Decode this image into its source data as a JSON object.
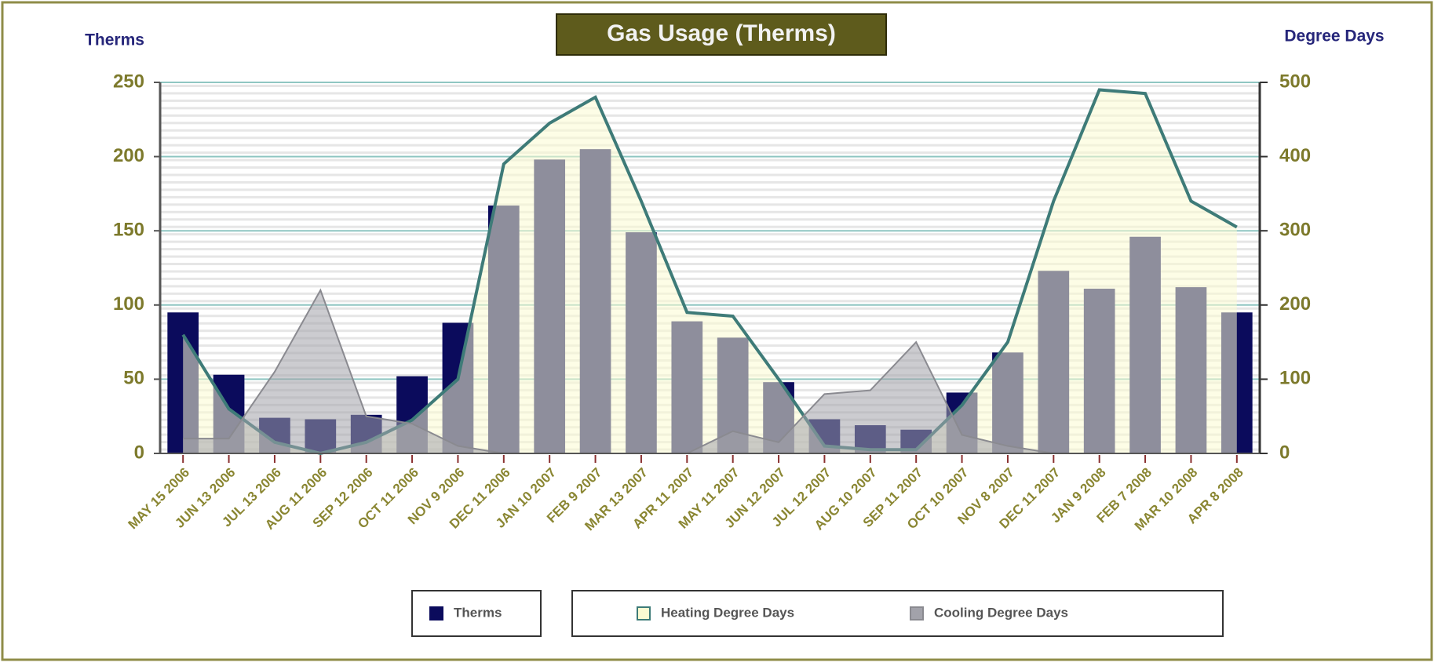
{
  "chart_data": {
    "type": "bar",
    "title": "Gas Usage (Therms)",
    "ylabel": "Therms",
    "y2label": "Degree Days",
    "categories": [
      "MAY 15 2006",
      "JUN 13 2006",
      "JUL 13 2006",
      "AUG 11 2006",
      "SEP 12 2006",
      "OCT 11 2006",
      "NOV 9 2006",
      "DEC 11 2006",
      "JAN 10 2007",
      "FEB 9 2007",
      "MAR 13 2007",
      "APR 11 2007",
      "MAY 11 2007",
      "JUN 12 2007",
      "JUL 12 2007",
      "AUG 10 2007",
      "SEP 11 2007",
      "OCT 10 2007",
      "NOV 8 2007",
      "DEC 11 2007",
      "JAN 9 2008",
      "FEB 7 2008",
      "MAR 10 2008",
      "APR 8 2008"
    ],
    "series": [
      {
        "name": "Therms",
        "type": "bar",
        "color": "#0b0b5c",
        "values": [
          95,
          53,
          24,
          23,
          26,
          52,
          88,
          167,
          198,
          205,
          149,
          89,
          78,
          48,
          23,
          19,
          16,
          41,
          68,
          123,
          111,
          146,
          112,
          95
        ]
      },
      {
        "name": "Heating Degree Days",
        "type": "area",
        "axis": "y2",
        "color": "#3e7b78",
        "fill": "#fbfbd2",
        "values": [
          160,
          60,
          15,
          0,
          15,
          45,
          100,
          390,
          445,
          480,
          340,
          190,
          185,
          100,
          10,
          5,
          5,
          65,
          150,
          340,
          490,
          485,
          340,
          305
        ]
      },
      {
        "name": "Cooling Degree Days",
        "type": "area",
        "axis": "y2",
        "color": "#8a8a90",
        "fill": "#a2a2aa",
        "values": [
          20,
          20,
          110,
          220,
          50,
          40,
          10,
          0,
          0,
          0,
          0,
          0,
          30,
          15,
          80,
          85,
          150,
          25,
          10,
          0,
          0,
          0,
          0,
          0
        ]
      }
    ],
    "ylim": [
      0,
      250
    ],
    "yticks": [
      0,
      50,
      100,
      150,
      200,
      250
    ],
    "y2lim": [
      0,
      500
    ],
    "y2ticks": [
      0,
      100,
      200,
      300,
      400,
      500
    ],
    "grid": true
  }
}
